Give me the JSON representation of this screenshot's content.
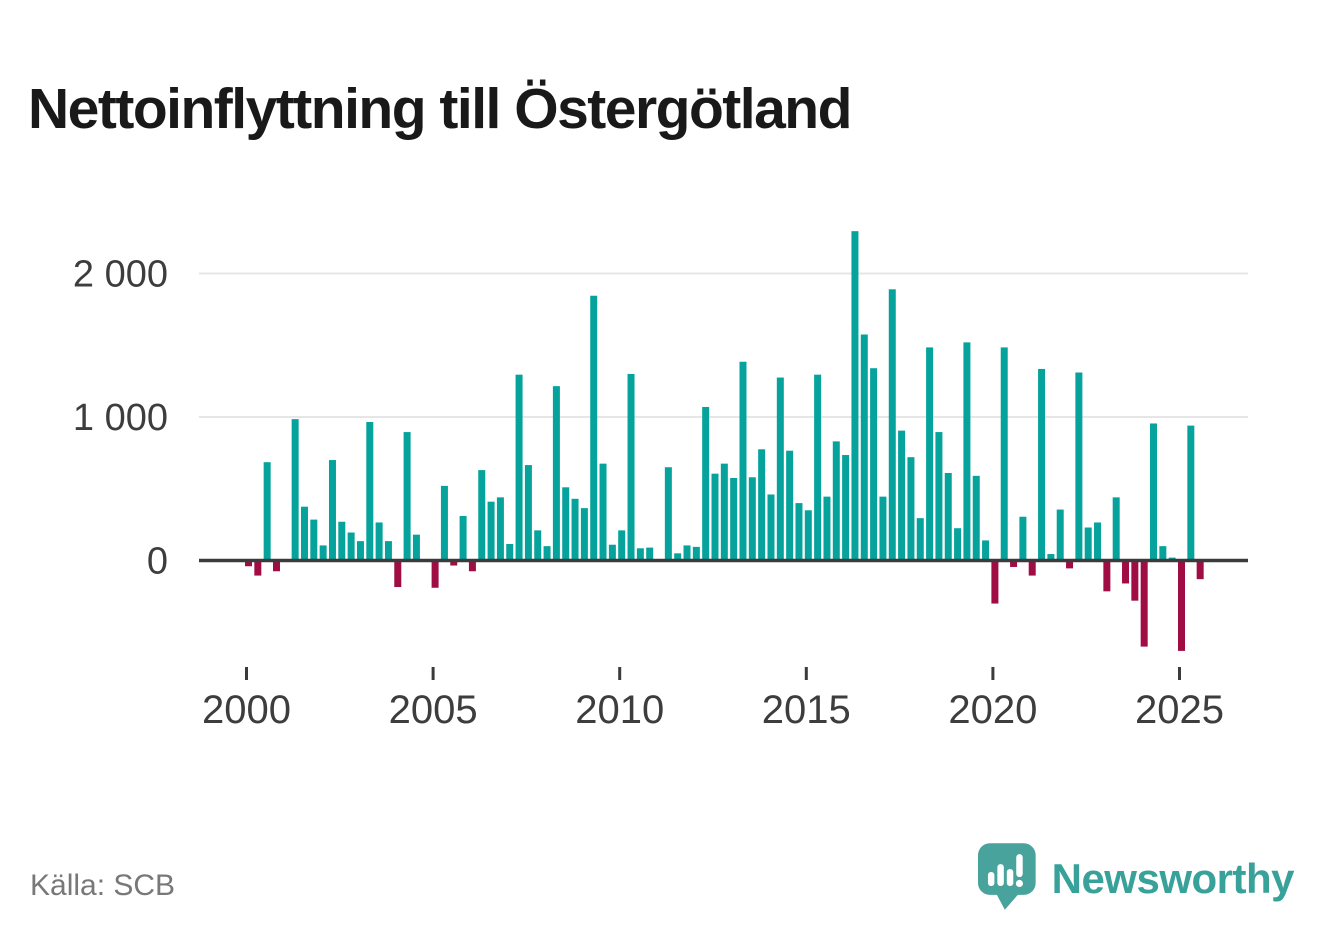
{
  "title": "Nettoinflyttning till Östergötland",
  "source": {
    "label": "Källa: SCB"
  },
  "branding": {
    "name": "Newsworthy"
  },
  "colors": {
    "positive_bar": "#05a39b",
    "negative_bar": "#a00c44",
    "axis_line": "#3b3b3b",
    "gridline": "#e6e6e6",
    "tick_text": "#3d3d3d",
    "title_text": "#191919",
    "source_text": "#787878",
    "brand_teal": "#38a29a"
  },
  "chart_data": {
    "type": "bar",
    "title": "Nettoinflyttning till Östergötland",
    "xlabel": "",
    "ylabel": "",
    "grid": "horizontal",
    "legend": "none",
    "ylim": [
      -700,
      2400
    ],
    "start_year": 2000,
    "x_ticks": [
      "2000",
      "2005",
      "2010",
      "2015",
      "2020",
      "2025"
    ],
    "y_ticks": [
      {
        "value": 0,
        "label": "0"
      },
      {
        "value": 1000,
        "label": "1 000"
      },
      {
        "value": 2000,
        "label": "2 000"
      }
    ],
    "points": [
      {
        "q": "2000 Q1",
        "v": -40
      },
      {
        "q": "2000 Q2",
        "v": -105
      },
      {
        "q": "2000 Q3",
        "v": 685
      },
      {
        "q": "2000 Q4",
        "v": -75
      },
      {
        "q": "2001 Q1",
        "v": 0
      },
      {
        "q": "2001 Q2",
        "v": 985
      },
      {
        "q": "2001 Q3",
        "v": 375
      },
      {
        "q": "2001 Q4",
        "v": 285
      },
      {
        "q": "2002 Q1",
        "v": 105
      },
      {
        "q": "2002 Q2",
        "v": 700
      },
      {
        "q": "2002 Q3",
        "v": 270
      },
      {
        "q": "2002 Q4",
        "v": 195
      },
      {
        "q": "2003 Q1",
        "v": 135
      },
      {
        "q": "2003 Q2",
        "v": 965
      },
      {
        "q": "2003 Q3",
        "v": 265
      },
      {
        "q": "2003 Q4",
        "v": 135
      },
      {
        "q": "2004 Q1",
        "v": -185
      },
      {
        "q": "2004 Q2",
        "v": 895
      },
      {
        "q": "2004 Q3",
        "v": 180
      },
      {
        "q": "2004 Q4",
        "v": 0
      },
      {
        "q": "2005 Q1",
        "v": -190
      },
      {
        "q": "2005 Q2",
        "v": 520
      },
      {
        "q": "2005 Q3",
        "v": -35
      },
      {
        "q": "2005 Q4",
        "v": 310
      },
      {
        "q": "2006 Q1",
        "v": -75
      },
      {
        "q": "2006 Q2",
        "v": 630
      },
      {
        "q": "2006 Q3",
        "v": 410
      },
      {
        "q": "2006 Q4",
        "v": 440
      },
      {
        "q": "2007 Q1",
        "v": 115
      },
      {
        "q": "2007 Q2",
        "v": 1295
      },
      {
        "q": "2007 Q3",
        "v": 665
      },
      {
        "q": "2007 Q4",
        "v": 210
      },
      {
        "q": "2008 Q1",
        "v": 100
      },
      {
        "q": "2008 Q2",
        "v": 1215
      },
      {
        "q": "2008 Q3",
        "v": 510
      },
      {
        "q": "2008 Q4",
        "v": 430
      },
      {
        "q": "2009 Q1",
        "v": 365
      },
      {
        "q": "2009 Q2",
        "v": 1845
      },
      {
        "q": "2009 Q3",
        "v": 675
      },
      {
        "q": "2009 Q4",
        "v": 110
      },
      {
        "q": "2010 Q1",
        "v": 210
      },
      {
        "q": "2010 Q2",
        "v": 1300
      },
      {
        "q": "2010 Q3",
        "v": 85
      },
      {
        "q": "2010 Q4",
        "v": 90
      },
      {
        "q": "2011 Q1",
        "v": 0
      },
      {
        "q": "2011 Q2",
        "v": 650
      },
      {
        "q": "2011 Q3",
        "v": 50
      },
      {
        "q": "2011 Q4",
        "v": 105
      },
      {
        "q": "2012 Q1",
        "v": 95
      },
      {
        "q": "2012 Q2",
        "v": 1070
      },
      {
        "q": "2012 Q3",
        "v": 605
      },
      {
        "q": "2012 Q4",
        "v": 675
      },
      {
        "q": "2013 Q1",
        "v": 575
      },
      {
        "q": "2013 Q2",
        "v": 1385
      },
      {
        "q": "2013 Q3",
        "v": 580
      },
      {
        "q": "2013 Q4",
        "v": 775
      },
      {
        "q": "2014 Q1",
        "v": 460
      },
      {
        "q": "2014 Q2",
        "v": 1275
      },
      {
        "q": "2014 Q3",
        "v": 765
      },
      {
        "q": "2014 Q4",
        "v": 400
      },
      {
        "q": "2015 Q1",
        "v": 350
      },
      {
        "q": "2015 Q2",
        "v": 1295
      },
      {
        "q": "2015 Q3",
        "v": 445
      },
      {
        "q": "2015 Q4",
        "v": 830
      },
      {
        "q": "2016 Q1",
        "v": 735
      },
      {
        "q": "2016 Q2",
        "v": 2295
      },
      {
        "q": "2016 Q3",
        "v": 1575
      },
      {
        "q": "2016 Q4",
        "v": 1340
      },
      {
        "q": "2017 Q1",
        "v": 445
      },
      {
        "q": "2017 Q2",
        "v": 1890
      },
      {
        "q": "2017 Q3",
        "v": 905
      },
      {
        "q": "2017 Q4",
        "v": 720
      },
      {
        "q": "2018 Q1",
        "v": 295
      },
      {
        "q": "2018 Q2",
        "v": 1485
      },
      {
        "q": "2018 Q3",
        "v": 895
      },
      {
        "q": "2018 Q4",
        "v": 610
      },
      {
        "q": "2019 Q1",
        "v": 225
      },
      {
        "q": "2019 Q2",
        "v": 1520
      },
      {
        "q": "2019 Q3",
        "v": 590
      },
      {
        "q": "2019 Q4",
        "v": 140
      },
      {
        "q": "2020 Q1",
        "v": -300
      },
      {
        "q": "2020 Q2",
        "v": 1485
      },
      {
        "q": "2020 Q3",
        "v": -45
      },
      {
        "q": "2020 Q4",
        "v": 305
      },
      {
        "q": "2021 Q1",
        "v": -105
      },
      {
        "q": "2021 Q2",
        "v": 1335
      },
      {
        "q": "2021 Q3",
        "v": 45
      },
      {
        "q": "2021 Q4",
        "v": 355
      },
      {
        "q": "2022 Q1",
        "v": -55
      },
      {
        "q": "2022 Q2",
        "v": 1310
      },
      {
        "q": "2022 Q3",
        "v": 230
      },
      {
        "q": "2022 Q4",
        "v": 265
      },
      {
        "q": "2023 Q1",
        "v": -215
      },
      {
        "q": "2023 Q2",
        "v": 440
      },
      {
        "q": "2023 Q3",
        "v": -160
      },
      {
        "q": "2023 Q4",
        "v": -280
      },
      {
        "q": "2024 Q1",
        "v": -600
      },
      {
        "q": "2024 Q2",
        "v": 955
      },
      {
        "q": "2024 Q3",
        "v": 100
      },
      {
        "q": "2024 Q4",
        "v": 20
      },
      {
        "q": "2025 Q1",
        "v": -630
      },
      {
        "q": "2025 Q2",
        "v": 940
      },
      {
        "q": "2025 Q3",
        "v": -130
      }
    ]
  }
}
